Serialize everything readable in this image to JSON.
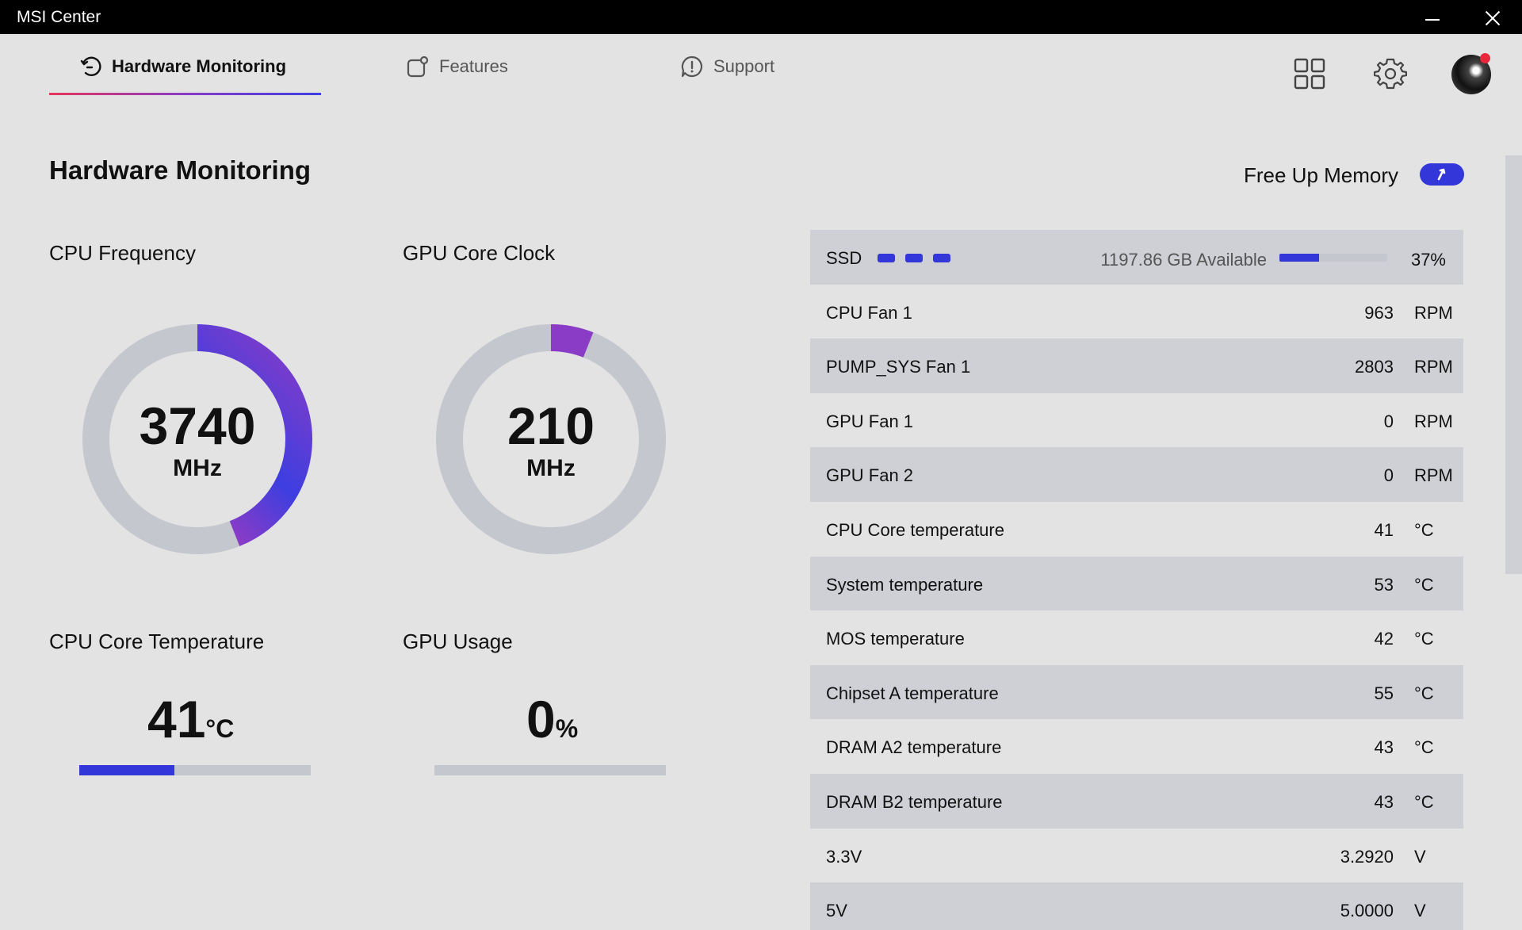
{
  "window": {
    "title": "MSI Center"
  },
  "nav": {
    "tabs": [
      {
        "label": "Hardware Monitoring",
        "icon": "monitor-gauge-icon",
        "active": true
      },
      {
        "label": "Features",
        "icon": "features-icon",
        "active": false
      },
      {
        "label": "Support",
        "icon": "support-icon",
        "active": false
      }
    ],
    "icons": [
      "grid-icon",
      "gear-icon",
      "avatar"
    ]
  },
  "page": {
    "title": "Hardware Monitoring"
  },
  "free_memory": {
    "label": "Free Up Memory",
    "icon": "rocket-icon"
  },
  "gauges": {
    "cpu_freq": {
      "label": "CPU Frequency",
      "value": "3740",
      "unit": "MHz",
      "fraction": 0.44
    },
    "gpu_clock": {
      "label": "GPU Core Clock",
      "value": "210",
      "unit": "MHz",
      "fraction": 0.06
    }
  },
  "stats": {
    "cpu_temp": {
      "label": "CPU Core Temperature",
      "value": "41",
      "unit": "°C",
      "fraction": 0.41
    },
    "gpu_usage": {
      "label": "GPU Usage",
      "value": "0",
      "unit": "%",
      "fraction": 0
    }
  },
  "ssd": {
    "name": "SSD",
    "available": "1197.86 GB Available",
    "percent": "37%",
    "fraction": 0.37
  },
  "sensors": [
    {
      "name": "CPU Fan 1",
      "value": "963",
      "unit": "RPM"
    },
    {
      "name": "PUMP_SYS Fan 1",
      "value": "2803",
      "unit": "RPM"
    },
    {
      "name": "GPU Fan 1",
      "value": "0",
      "unit": "RPM"
    },
    {
      "name": "GPU Fan 2",
      "value": "0",
      "unit": "RPM"
    },
    {
      "name": "CPU Core temperature",
      "value": "41",
      "unit": "°C"
    },
    {
      "name": "System temperature",
      "value": "53",
      "unit": "°C"
    },
    {
      "name": "MOS temperature",
      "value": "42",
      "unit": "°C"
    },
    {
      "name": "Chipset A temperature",
      "value": "55",
      "unit": "°C"
    },
    {
      "name": "DRAM A2 temperature",
      "value": "43",
      "unit": "°C"
    },
    {
      "name": "DRAM B2 temperature",
      "value": "43",
      "unit": "°C"
    },
    {
      "name": "3.3V",
      "value": "3.2920",
      "unit": "V"
    },
    {
      "name": "5V",
      "value": "5.0000",
      "unit": "V"
    }
  ],
  "colors": {
    "accent": "#3336d9",
    "gradient_start": "#e6365b",
    "gradient_mid": "#8a3cc6",
    "track": "#c5c7cf"
  }
}
